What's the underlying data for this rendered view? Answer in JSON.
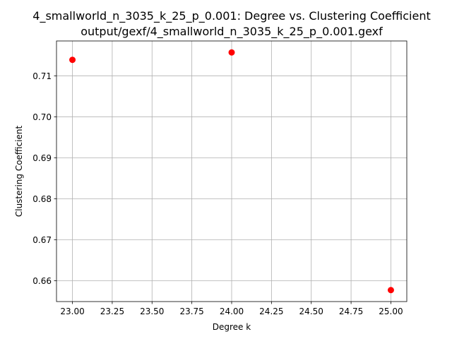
{
  "chart_data": {
    "type": "scatter",
    "title": "4_smallworld_n_3035_k_25_p_0.001: Degree vs. Clustering Coefficient",
    "subtitle": "output/gexf/4_smallworld_n_3035_k_25_p_0.001.gexf",
    "xlabel": "Degree k",
    "ylabel": "Clustering Coefficient",
    "xlim": [
      22.9,
      25.1
    ],
    "ylim": [
      0.6549,
      0.7185
    ],
    "x_ticks": [
      "23.00",
      "23.25",
      "23.50",
      "23.75",
      "24.00",
      "24.25",
      "24.50",
      "24.75",
      "25.00"
    ],
    "x_tick_values": [
      23.0,
      23.25,
      23.5,
      23.75,
      24.0,
      24.25,
      24.5,
      24.75,
      25.0
    ],
    "y_ticks": [
      "0.66",
      "0.67",
      "0.68",
      "0.69",
      "0.70",
      "0.71"
    ],
    "y_tick_values": [
      0.66,
      0.67,
      0.68,
      0.69,
      0.7,
      0.71
    ],
    "grid": true,
    "marker_color": "#ff0000",
    "points": [
      {
        "x": 23,
        "y": 0.7139
      },
      {
        "x": 24,
        "y": 0.7157
      },
      {
        "x": 25,
        "y": 0.6577
      }
    ]
  }
}
